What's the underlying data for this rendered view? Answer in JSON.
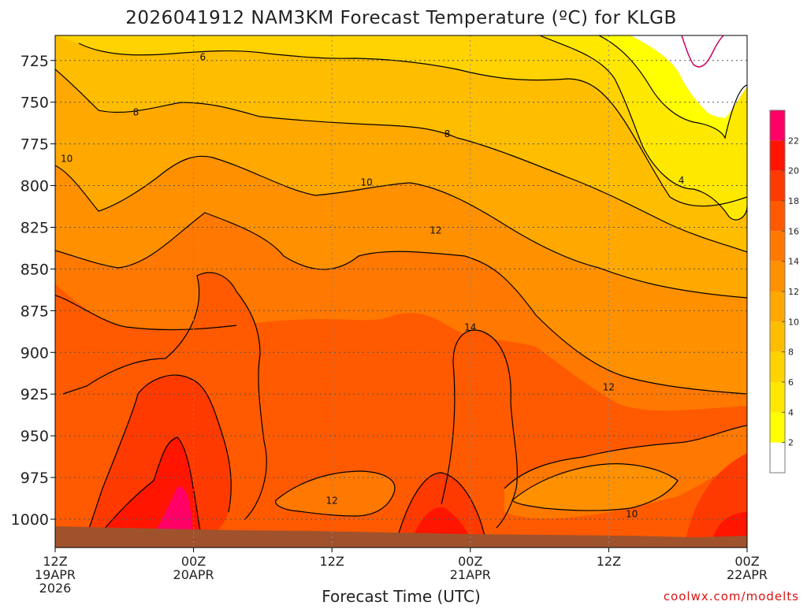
{
  "chart_data": {
    "type": "heatmap",
    "title": "2026041912 NAM3KM Forecast Temperature (ºC) for KLGB",
    "xlabel": "Forecast Time (UTC)",
    "credit": "coolwx.com/modelts",
    "y_ticks": [
      "725",
      "750",
      "775",
      "800",
      "825",
      "850",
      "875",
      "900",
      "925",
      "950",
      "975",
      "1000"
    ],
    "y_range_hpa": [
      710,
      1017
    ],
    "x_ticks": [
      {
        "hour": 0,
        "line1": "12Z",
        "line2": "19APR",
        "line3": "2026"
      },
      {
        "hour": 12,
        "line1": "00Z",
        "line2": "20APR",
        "line3": ""
      },
      {
        "hour": 24,
        "line1": "12Z",
        "line2": "",
        "line3": ""
      },
      {
        "hour": 36,
        "line1": "00Z",
        "line2": "21APR",
        "line3": ""
      },
      {
        "hour": 48,
        "line1": "12Z",
        "line2": "",
        "line3": ""
      },
      {
        "hour": 60,
        "line1": "00Z",
        "line2": "22APR",
        "line3": ""
      }
    ],
    "x_range_hours": [
      0,
      60
    ],
    "colorbar": {
      "levels": [
        0,
        2,
        4,
        6,
        8,
        10,
        12,
        14,
        16,
        18,
        20,
        22,
        24
      ],
      "tick_labels": [
        "2",
        "4",
        "6",
        "8",
        "10",
        "12",
        "14",
        "16",
        "18",
        "20",
        "22"
      ],
      "colors": [
        "#ffffff",
        "#ffff00",
        "#ffe800",
        "#ffd200",
        "#ffbd00",
        "#ffa800",
        "#ff9000",
        "#ff7800",
        "#ff5a00",
        "#ff3a00",
        "#ff1500",
        "#ff0066"
      ]
    },
    "contour_labels": [
      {
        "text": "6",
        "hour": 12.8,
        "hpa": 723
      },
      {
        "text": "8",
        "hour": 7.0,
        "hpa": 756
      },
      {
        "text": "8",
        "hour": 34.0,
        "hpa": 769
      },
      {
        "text": "10",
        "hour": 1.0,
        "hpa": 784
      },
      {
        "text": "10",
        "hour": 27.0,
        "hpa": 798
      },
      {
        "text": "12",
        "hour": 33.0,
        "hpa": 827
      },
      {
        "text": "14",
        "hour": 36.0,
        "hpa": 885
      },
      {
        "text": "12",
        "hour": 48.0,
        "hpa": 921
      },
      {
        "text": "12",
        "hour": 24.0,
        "hpa": 989
      },
      {
        "text": "10",
        "hour": 50.0,
        "hpa": 997
      },
      {
        "text": "4",
        "hour": 54.3,
        "hpa": 797
      }
    ],
    "grid": true,
    "legend": "right colorbar"
  }
}
